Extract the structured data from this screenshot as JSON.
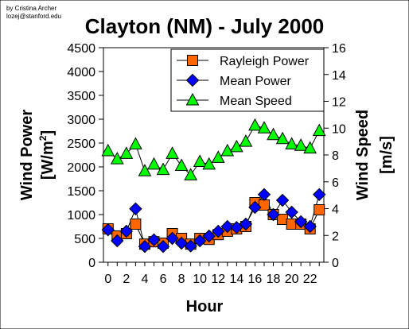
{
  "credits": {
    "line1": "by Cristina Archer",
    "line2": "lozej@stanford.edu"
  },
  "chart_data": {
    "type": "line",
    "title": "Clayton (NM) - July 2000",
    "xlabel": "Hour",
    "ylabel_left": "Wind Power",
    "ylabel_left_unit_prefix": "[W/m",
    "ylabel_left_unit_sup": "2",
    "ylabel_left_unit_suffix": "]",
    "ylabel_right": "Wind Speed",
    "ylabel_right_unit": "[m/s]",
    "x": [
      0,
      1,
      2,
      3,
      4,
      5,
      6,
      7,
      8,
      9,
      10,
      11,
      12,
      13,
      14,
      15,
      16,
      17,
      18,
      19,
      20,
      21,
      22,
      23
    ],
    "x_tick_labels": [
      "0",
      "2",
      "4",
      "6",
      "8",
      "10",
      "12",
      "14",
      "16",
      "18",
      "20",
      "22"
    ],
    "xlim": [
      -0.5,
      23.5
    ],
    "ylim_left": [
      0,
      4500
    ],
    "yticks_left": [
      "0",
      "500",
      "1000",
      "1500",
      "2000",
      "2500",
      "3000",
      "3500",
      "4000",
      "4500"
    ],
    "ylim_right": [
      0,
      16
    ],
    "yticks_right": [
      "0",
      "2",
      "4",
      "6",
      "8",
      "10",
      "12",
      "14",
      "16"
    ],
    "grid": false,
    "legend_position": "top-right",
    "series": [
      {
        "name": "Rayleigh Power",
        "axis": "left",
        "marker": "square",
        "color": "#FF6600",
        "values": [
          700,
          550,
          600,
          800,
          380,
          430,
          400,
          600,
          500,
          380,
          500,
          480,
          580,
          650,
          700,
          750,
          1250,
          1200,
          1000,
          900,
          800,
          800,
          700,
          1100
        ]
      },
      {
        "name": "Mean Power",
        "axis": "left",
        "marker": "diamond",
        "color": "#0000FF",
        "values": [
          680,
          450,
          650,
          1120,
          330,
          470,
          330,
          500,
          400,
          340,
          450,
          550,
          650,
          750,
          730,
          800,
          1150,
          1420,
          1000,
          1300,
          1050,
          850,
          750,
          1420
        ]
      },
      {
        "name": "Mean Speed",
        "axis": "right",
        "marker": "triangle",
        "color": "#00FF00",
        "values": [
          8.3,
          7.7,
          8.1,
          8.8,
          6.8,
          7.3,
          6.9,
          8.1,
          7.2,
          6.5,
          7.5,
          7.3,
          7.8,
          8.3,
          8.6,
          9.0,
          10.2,
          10.0,
          9.5,
          9.2,
          8.8,
          8.7,
          8.5,
          9.8
        ]
      }
    ]
  }
}
